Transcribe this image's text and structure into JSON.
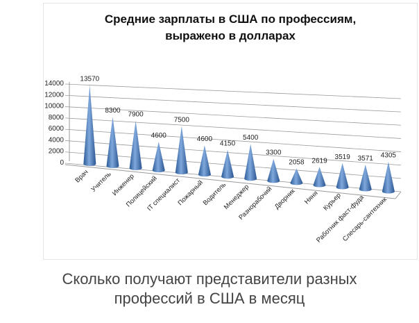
{
  "chart_data": {
    "type": "bar",
    "title": "Средние зарплаты в США по профессиям, выражено в долларах",
    "title_lines": [
      "Средние зарплаты в США по профессиям,",
      "выражено в долларах"
    ],
    "categories": [
      "Врач",
      "Учитель",
      "Инженер",
      "Полицейский",
      "IT специалист",
      "Пожарный",
      "Водитель",
      "Менеджер",
      "Разнорабочий",
      "Дворник",
      "Няня",
      "Курьер",
      "Работник фаст-фуда",
      "Слесарь-сантехник"
    ],
    "values": [
      13570,
      8300,
      7900,
      4600,
      7500,
      4600,
      4150,
      5400,
      3300,
      2058,
      2619,
      3519,
      3571,
      4305
    ],
    "yticks": [
      0,
      2000,
      4000,
      6000,
      8000,
      10000,
      12000,
      14000
    ],
    "ylim": [
      0,
      14000
    ],
    "xlabel": "",
    "ylabel": "",
    "grid": true,
    "color": "#4a7fc1"
  },
  "caption": [
    "Сколько получают представители разных",
    "профессий в США в месяц"
  ]
}
